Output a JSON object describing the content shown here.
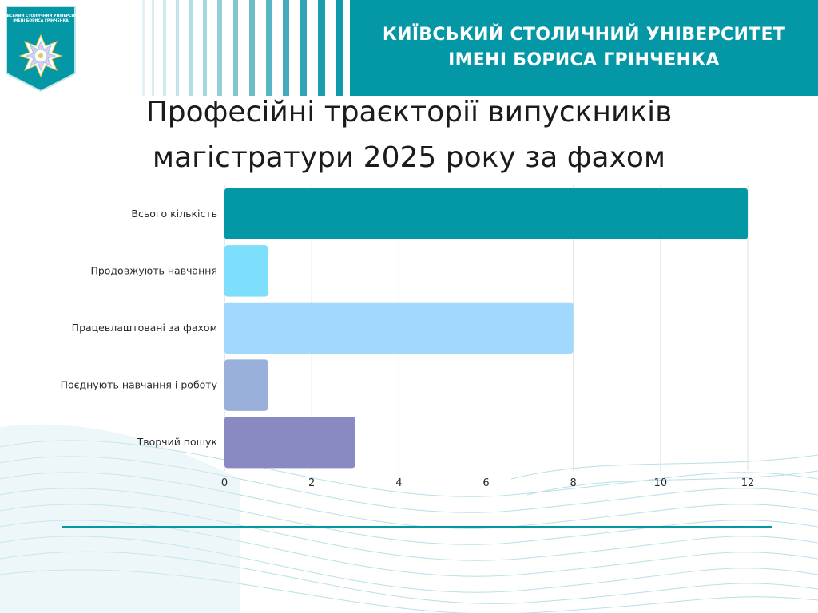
{
  "header": {
    "logo_text_line1": "КИЇВСЬКИЙ СТОЛИЧНИЙ УНІВЕРСИТЕТ",
    "logo_text_line2": "ІМЕНІ БОРИСА ГРІНЧЕНКА",
    "university_line1": "КИЇВСЬКИЙ СТОЛИЧНИЙ УНІВЕРСИТЕТ",
    "university_line2": "ІМЕНІ БОРИСА ГРІНЧЕНКА"
  },
  "slide": {
    "title_line1": "Професійні траєкторії випускників",
    "title_line2": "магістратури 2025 року за фахом"
  },
  "colors": {
    "accent": "#0497a6",
    "title": "#1b1b1b"
  },
  "chart_data": {
    "type": "bar",
    "orientation": "horizontal",
    "categories": [
      "Всього кількість",
      "Продовжують навчання",
      "Працевлаштовані за фахом",
      "Поєднують навчання і роботу",
      "Творчий пошук"
    ],
    "values": [
      12,
      1,
      8,
      1,
      3
    ],
    "colors": [
      "#0497a6",
      "#7ddffc",
      "#a2d8fb",
      "#99b0da",
      "#8a8ac2"
    ],
    "xlim": [
      0,
      12
    ],
    "xticks": [
      0,
      2,
      4,
      6,
      8,
      10,
      12
    ],
    "grid": true,
    "legend": "none"
  }
}
